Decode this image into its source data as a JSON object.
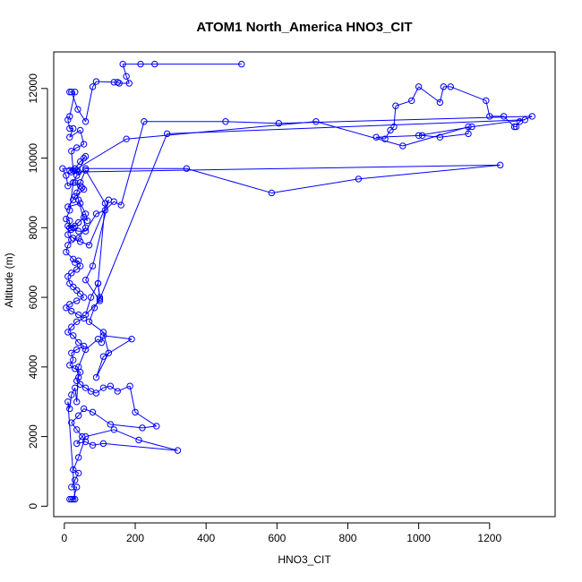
{
  "chart_data": {
    "type": "line",
    "title": "ATOM1 North_America HNO3_CIT",
    "xlabel": "HNO3_CIT",
    "ylabel": "Altitude (m)",
    "xlim": [
      -30,
      1385
    ],
    "ylim": [
      -300,
      13050
    ],
    "x_ticks": [
      0,
      200,
      400,
      600,
      800,
      1000,
      1200
    ],
    "y_ticks": [
      0,
      2000,
      4000,
      6000,
      8000,
      10000,
      12000
    ],
    "grid": false,
    "legend": "none",
    "series": [
      {
        "color": "#0000ff",
        "marker": "open-circle",
        "points": [
          [
            500,
            12700
          ],
          [
            255,
            12700
          ],
          [
            215,
            12700
          ],
          [
            165,
            12700
          ],
          [
            175,
            12350
          ],
          [
            183,
            12150
          ],
          [
            155,
            12150
          ],
          [
            150,
            12180
          ],
          [
            140,
            12180
          ],
          [
            90,
            12200
          ],
          [
            80,
            12050
          ],
          [
            60,
            11050
          ],
          [
            38,
            11400
          ],
          [
            20,
            11900
          ],
          [
            15,
            11900
          ],
          [
            30,
            11900
          ],
          [
            15,
            11200
          ],
          [
            10,
            11100
          ],
          [
            15,
            10850
          ],
          [
            25,
            10850
          ],
          [
            15,
            10600
          ],
          [
            45,
            10800
          ],
          [
            55,
            10400
          ],
          [
            35,
            10300
          ],
          [
            20,
            10200
          ],
          [
            25,
            9650
          ],
          [
            15,
            9650
          ],
          [
            35,
            9650
          ],
          [
            40,
            9600
          ],
          [
            55,
            10000
          ],
          [
            60,
            10050
          ],
          [
            45,
            9900
          ],
          [
            30,
            9700
          ],
          [
            -5,
            9700
          ],
          [
            5,
            9500
          ],
          [
            10,
            9200
          ],
          [
            30,
            9300
          ],
          [
            45,
            9200
          ],
          [
            50,
            9150
          ],
          [
            55,
            9100
          ],
          [
            30,
            8900
          ],
          [
            25,
            8800
          ],
          [
            10,
            8600
          ],
          [
            45,
            8700
          ],
          [
            60,
            8400
          ],
          [
            65,
            8200
          ],
          [
            55,
            8300
          ],
          [
            40,
            8150
          ],
          [
            25,
            8000
          ],
          [
            15,
            8000
          ],
          [
            30,
            8050
          ],
          [
            10,
            8050
          ],
          [
            20,
            7950
          ],
          [
            40,
            7900
          ],
          [
            60,
            7900
          ],
          [
            90,
            8400
          ],
          [
            115,
            8500
          ],
          [
            140,
            8750
          ],
          [
            160,
            8650
          ],
          [
            225,
            11050
          ],
          [
            455,
            11050
          ],
          [
            605,
            11000
          ],
          [
            1320,
            11200
          ],
          [
            1285,
            11050
          ],
          [
            1275,
            10900
          ],
          [
            1270,
            10900
          ],
          [
            1240,
            11200
          ],
          [
            1200,
            11200
          ],
          [
            1190,
            11650
          ],
          [
            1090,
            12050
          ],
          [
            1070,
            12050
          ],
          [
            1060,
            11600
          ],
          [
            1000,
            12050
          ],
          [
            980,
            11650
          ],
          [
            935,
            11500
          ],
          [
            930,
            10900
          ],
          [
            920,
            10800
          ],
          [
            905,
            10550
          ],
          [
            880,
            10600
          ],
          [
            1010,
            10650
          ],
          [
            1060,
            10600
          ],
          [
            1140,
            10700
          ],
          [
            1140,
            10900
          ],
          [
            955,
            10350
          ],
          [
            710,
            11050
          ],
          [
            175,
            10550
          ],
          [
            20,
            9600
          ],
          [
            1230,
            9800
          ],
          [
            830,
            9400
          ],
          [
            585,
            9000
          ],
          [
            345,
            9700
          ],
          [
            60,
            9700
          ],
          [
            35,
            9500
          ],
          [
            25,
            9300
          ],
          [
            15,
            8500
          ],
          [
            5,
            8250
          ],
          [
            15,
            8200
          ],
          [
            10,
            7800
          ],
          [
            20,
            7650
          ],
          [
            10,
            7500
          ],
          [
            5,
            7300
          ],
          [
            25,
            7100
          ],
          [
            30,
            7000
          ],
          [
            40,
            7050
          ],
          [
            45,
            6900
          ],
          [
            35,
            6800
          ],
          [
            20,
            6700
          ],
          [
            10,
            6600
          ],
          [
            15,
            6400
          ],
          [
            25,
            6300
          ],
          [
            35,
            6200
          ],
          [
            45,
            6100
          ],
          [
            55,
            6000
          ],
          [
            35,
            5900
          ],
          [
            15,
            5800
          ],
          [
            5,
            5700
          ],
          [
            20,
            5600
          ],
          [
            40,
            5500
          ],
          [
            55,
            5400
          ],
          [
            35,
            5300
          ],
          [
            20,
            5150
          ],
          [
            10,
            5000
          ],
          [
            25,
            4900
          ],
          [
            40,
            4700
          ],
          [
            55,
            4600
          ],
          [
            35,
            4500
          ],
          [
            20,
            4400
          ],
          [
            25,
            4200
          ],
          [
            15,
            4050
          ],
          [
            30,
            3950
          ],
          [
            45,
            3850
          ],
          [
            40,
            3700
          ],
          [
            35,
            3600
          ],
          [
            45,
            3500
          ],
          [
            60,
            3400
          ],
          [
            75,
            3300
          ],
          [
            90,
            3250
          ],
          [
            110,
            3400
          ],
          [
            130,
            3450
          ],
          [
            150,
            3300
          ],
          [
            185,
            3450
          ],
          [
            200,
            2700
          ],
          [
            260,
            2300
          ],
          [
            220,
            2250
          ],
          [
            130,
            2350
          ],
          [
            80,
            2700
          ],
          [
            55,
            2800
          ],
          [
            40,
            2600
          ],
          [
            20,
            2400
          ],
          [
            35,
            2200
          ],
          [
            50,
            2000
          ],
          [
            35,
            1800
          ],
          [
            60,
            1850
          ],
          [
            80,
            1750
          ],
          [
            110,
            1800
          ],
          [
            320,
            1600
          ],
          [
            210,
            1900
          ],
          [
            140,
            2200
          ],
          [
            60,
            2000
          ],
          [
            40,
            1400
          ],
          [
            25,
            1050
          ],
          [
            40,
            950
          ],
          [
            30,
            750
          ],
          [
            20,
            550
          ],
          [
            35,
            550
          ],
          [
            25,
            200
          ],
          [
            20,
            200
          ],
          [
            15,
            200
          ],
          [
            30,
            200
          ],
          [
            10,
            3000
          ],
          [
            15,
            2800
          ],
          [
            20,
            3200
          ],
          [
            30,
            3400
          ],
          [
            35,
            3000
          ],
          [
            40,
            4000
          ],
          [
            60,
            4500
          ],
          [
            95,
            4800
          ],
          [
            105,
            4700
          ],
          [
            110,
            4900
          ],
          [
            190,
            4800
          ],
          [
            110,
            4300
          ],
          [
            90,
            3700
          ],
          [
            125,
            4400
          ],
          [
            110,
            5000
          ],
          [
            70,
            5300
          ],
          [
            85,
            5700
          ],
          [
            100,
            6000
          ],
          [
            95,
            6400
          ],
          [
            75,
            6000
          ],
          [
            60,
            5500
          ],
          [
            100,
            5900
          ],
          [
            60,
            6500
          ],
          [
            80,
            6900
          ],
          [
            125,
            8800
          ],
          [
            70,
            7500
          ],
          [
            45,
            7600
          ],
          [
            25,
            7700
          ],
          [
            40,
            7700
          ],
          [
            60,
            8000
          ],
          [
            40,
            8800
          ],
          [
            35,
            9000
          ],
          [
            45,
            9300
          ],
          [
            60,
            9650
          ],
          [
            115,
            8700
          ],
          [
            95,
            6400
          ],
          [
            100,
            5950
          ],
          [
            290,
            10700
          ],
          [
            1300,
            11100
          ],
          [
            1150,
            10900
          ],
          [
            1000,
            10650
          ]
        ]
      }
    ]
  }
}
